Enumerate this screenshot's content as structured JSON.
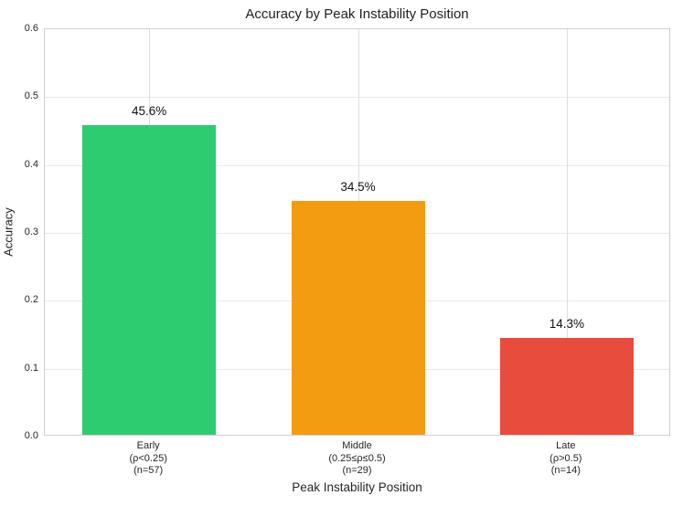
{
  "chart_data": {
    "type": "bar",
    "title": "Accuracy by Peak Instability Position",
    "xlabel": "Peak Instability Position",
    "ylabel": "Accuracy",
    "ylim": [
      0,
      0.6
    ],
    "yticks": [
      0.0,
      0.1,
      0.2,
      0.3,
      0.4,
      0.5,
      0.6
    ],
    "ytick_labels": [
      "0.0",
      "0.1",
      "0.2",
      "0.3",
      "0.4",
      "0.5",
      "0.6"
    ],
    "grid": true,
    "legend": false,
    "categories": [
      {
        "lines": [
          "Early",
          "(ρ<0.25)",
          "(n=57)"
        ]
      },
      {
        "lines": [
          "Middle",
          "(0.25≤ρ≤0.5)",
          "(n=29)"
        ]
      },
      {
        "lines": [
          "Late",
          "(ρ>0.5)",
          "(n=14)"
        ]
      }
    ],
    "series": [
      {
        "name": "Accuracy",
        "values": [
          0.456,
          0.345,
          0.143
        ],
        "value_labels": [
          "45.6%",
          "34.5%",
          "14.3%"
        ],
        "bar_colors": [
          "#2ecc71",
          "#f39c12",
          "#e74c3c"
        ]
      }
    ]
  },
  "colors": {
    "background": "#ffffff",
    "plot_background": "#ffffff",
    "spine": "#cfcfcf",
    "grid_horizontal": "#e9e9e9",
    "grid_vertical": "#dedede",
    "text": "#262626",
    "bar_green": "#2ecc71",
    "bar_orange": "#f39c12",
    "bar_red": "#e74c3c"
  }
}
